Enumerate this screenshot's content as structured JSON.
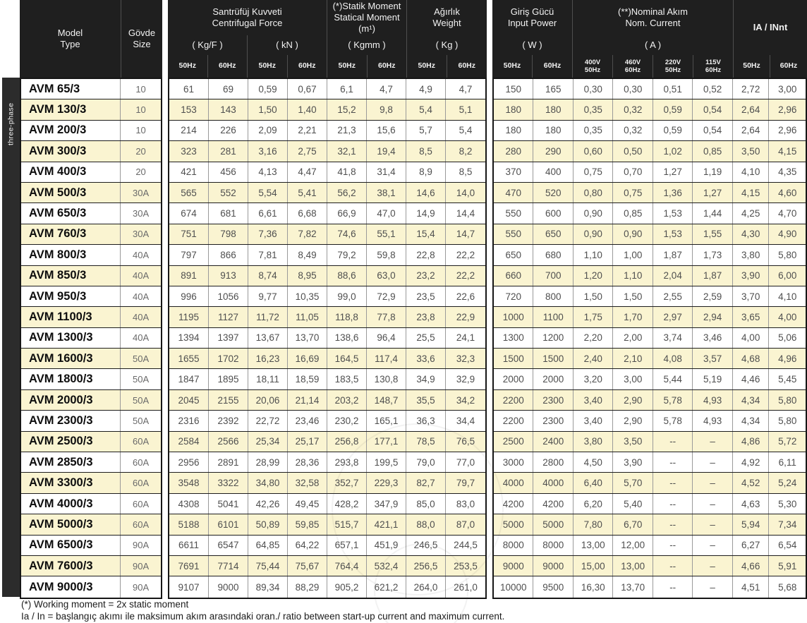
{
  "table": {
    "group_label": "three-phase",
    "header": {
      "model_tr": "Model",
      "model_en": "Type",
      "size_tr": "Gövde",
      "size_en": "Size",
      "centrifugal_tr": "Santrüfüj Kuvveti",
      "centrifugal_en": "Centrifugal Force",
      "unit_kgf": "( Kg/F )",
      "unit_kn": "( kN )",
      "static_tr": "(*)Statik Moment",
      "static_en": "Statical Moment (m¹)",
      "unit_kgmm": "( Kgmm )",
      "weight_tr": "Ağırlık",
      "weight_en": "Weight",
      "unit_kg": "( Kg )",
      "power_tr": "Giriş Gücü",
      "power_en": "Input Power",
      "unit_w": "( W )",
      "current_tr": "(**)Nominal Akım",
      "current_en": "Nom. Current",
      "unit_a": "( A )",
      "ia_label": "IA / INnt",
      "hz50": "50Hz",
      "hz60": "60Hz",
      "volt_subs": [
        [
          "400V",
          "50Hz"
        ],
        [
          "460V",
          "60Hz"
        ],
        [
          "220V",
          "50Hz"
        ],
        [
          "115V",
          "60Hz"
        ]
      ]
    },
    "rows": [
      {
        "model": "AVM 65/3",
        "size": "10",
        "values": [
          "61",
          "69",
          "0,59",
          "0,67",
          "6,1",
          "4,7",
          "4,9",
          "4,7",
          "150",
          "165",
          "0,30",
          "0,30",
          "0,51",
          "0,52",
          "2,72",
          "3,00"
        ]
      },
      {
        "model": "AVM 130/3",
        "size": "10",
        "values": [
          "153",
          "143",
          "1,50",
          "1,40",
          "15,2",
          "9,8",
          "5,4",
          "5,1",
          "180",
          "180",
          "0,35",
          "0,32",
          "0,59",
          "0,54",
          "2,64",
          "2,96"
        ]
      },
      {
        "model": "AVM 200/3",
        "size": "10",
        "values": [
          "214",
          "226",
          "2,09",
          "2,21",
          "21,3",
          "15,6",
          "5,7",
          "5,4",
          "180",
          "180",
          "0,35",
          "0,32",
          "0,59",
          "0,54",
          "2,64",
          "2,96"
        ]
      },
      {
        "model": "AVM 300/3",
        "size": "20",
        "values": [
          "323",
          "281",
          "3,16",
          "2,75",
          "32,1",
          "19,4",
          "8,5",
          "8,2",
          "280",
          "290",
          "0,60",
          "0,50",
          "1,02",
          "0,85",
          "3,50",
          "4,15"
        ]
      },
      {
        "model": "AVM 400/3",
        "size": "20",
        "values": [
          "421",
          "456",
          "4,13",
          "4,47",
          "41,8",
          "31,4",
          "8,9",
          "8,5",
          "370",
          "400",
          "0,75",
          "0,70",
          "1,27",
          "1,19",
          "4,10",
          "4,35"
        ]
      },
      {
        "model": "AVM 500/3",
        "size": "30A",
        "values": [
          "565",
          "552",
          "5,54",
          "5,41",
          "56,2",
          "38,1",
          "14,6",
          "14,0",
          "470",
          "520",
          "0,80",
          "0,75",
          "1,36",
          "1,27",
          "4,15",
          "4,60"
        ]
      },
      {
        "model": "AVM 650/3",
        "size": "30A",
        "values": [
          "674",
          "681",
          "6,61",
          "6,68",
          "66,9",
          "47,0",
          "14,9",
          "14,4",
          "550",
          "600",
          "0,90",
          "0,85",
          "1,53",
          "1,44",
          "4,25",
          "4,70"
        ]
      },
      {
        "model": "AVM 760/3",
        "size": "30A",
        "values": [
          "751",
          "798",
          "7,36",
          "7,82",
          "74,6",
          "55,1",
          "15,4",
          "14,7",
          "550",
          "650",
          "0,90",
          "0,90",
          "1,53",
          "1,55",
          "4,30",
          "4,90"
        ]
      },
      {
        "model": "AVM 800/3",
        "size": "40A",
        "values": [
          "797",
          "866",
          "7,81",
          "8,49",
          "79,2",
          "59,8",
          "22,8",
          "22,2",
          "650",
          "680",
          "1,10",
          "1,00",
          "1,87",
          "1,73",
          "3,80",
          "5,80"
        ]
      },
      {
        "model": "AVM 850/3",
        "size": "40A",
        "values": [
          "891",
          "913",
          "8,74",
          "8,95",
          "88,6",
          "63,0",
          "23,2",
          "22,2",
          "660",
          "700",
          "1,20",
          "1,10",
          "2,04",
          "1,87",
          "3,90",
          "6,00"
        ]
      },
      {
        "model": "AVM 950/3",
        "size": "40A",
        "values": [
          "996",
          "1056",
          "9,77",
          "10,35",
          "99,0",
          "72,9",
          "23,5",
          "22,6",
          "720",
          "800",
          "1,50",
          "1,50",
          "2,55",
          "2,59",
          "3,70",
          "4,10"
        ]
      },
      {
        "model": "AVM 1100/3",
        "size": "40A",
        "values": [
          "1195",
          "1127",
          "11,72",
          "11,05",
          "118,8",
          "77,8",
          "23,8",
          "22,9",
          "1000",
          "1100",
          "1,75",
          "1,70",
          "2,97",
          "2,94",
          "3,65",
          "4,00"
        ]
      },
      {
        "model": "AVM 1300/3",
        "size": "40A",
        "values": [
          "1394",
          "1397",
          "13,67",
          "13,70",
          "138,6",
          "96,4",
          "25,5",
          "24,1",
          "1300",
          "1200",
          "2,20",
          "2,00",
          "3,74",
          "3,46",
          "4,00",
          "5,06"
        ]
      },
      {
        "model": "AVM 1600/3",
        "size": "50A",
        "values": [
          "1655",
          "1702",
          "16,23",
          "16,69",
          "164,5",
          "117,4",
          "33,6",
          "32,3",
          "1500",
          "1500",
          "2,40",
          "2,10",
          "4,08",
          "3,57",
          "4,68",
          "4,96"
        ]
      },
      {
        "model": "AVM 1800/3",
        "size": "50A",
        "values": [
          "1847",
          "1895",
          "18,11",
          "18,59",
          "183,5",
          "130,8",
          "34,9",
          "32,9",
          "2000",
          "2000",
          "3,20",
          "3,00",
          "5,44",
          "5,19",
          "4,46",
          "5,45"
        ]
      },
      {
        "model": "AVM 2000/3",
        "size": "50A",
        "values": [
          "2045",
          "2155",
          "20,06",
          "21,14",
          "203,2",
          "148,7",
          "35,5",
          "34,2",
          "2200",
          "2300",
          "3,40",
          "2,90",
          "5,78",
          "4,93",
          "4,34",
          "5,80"
        ]
      },
      {
        "model": "AVM 2300/3",
        "size": "50A",
        "values": [
          "2316",
          "2392",
          "22,72",
          "23,46",
          "230,2",
          "165,1",
          "36,3",
          "34,4",
          "2200",
          "2300",
          "3,40",
          "2,90",
          "5,78",
          "4,93",
          "4,34",
          "5,80"
        ]
      },
      {
        "model": "AVM 2500/3",
        "size": "60A",
        "values": [
          "2584",
          "2566",
          "25,34",
          "25,17",
          "256,8",
          "177,1",
          "78,5",
          "76,5",
          "2500",
          "2400",
          "3,80",
          "3,50",
          "--",
          "–",
          "4,86",
          "5,72"
        ]
      },
      {
        "model": "AVM 2850/3",
        "size": "60A",
        "values": [
          "2956",
          "2891",
          "28,99",
          "28,36",
          "293,8",
          "199,5",
          "79,0",
          "77,0",
          "3000",
          "2800",
          "4,50",
          "3,90",
          "--",
          "–",
          "4,92",
          "6,11"
        ]
      },
      {
        "model": "AVM 3300/3",
        "size": "60A",
        "values": [
          "3548",
          "3322",
          "34,80",
          "32,58",
          "352,7",
          "229,3",
          "82,7",
          "79,7",
          "4000",
          "4000",
          "6,40",
          "5,70",
          "--",
          "–",
          "4,52",
          "5,24"
        ]
      },
      {
        "model": "AVM 4000/3",
        "size": "60A",
        "values": [
          "4308",
          "5041",
          "42,26",
          "49,45",
          "428,2",
          "347,9",
          "85,0",
          "83,0",
          "4200",
          "4200",
          "6,20",
          "5,40",
          "--",
          "–",
          "4,63",
          "5,30"
        ]
      },
      {
        "model": "AVM 5000/3",
        "size": "60A",
        "values": [
          "5188",
          "6101",
          "50,89",
          "59,85",
          "515,7",
          "421,1",
          "88,0",
          "87,0",
          "5000",
          "5000",
          "7,80",
          "6,70",
          "--",
          "–",
          "5,94",
          "7,34"
        ]
      },
      {
        "model": "AVM 6500/3",
        "size": "90A",
        "values": [
          "6611",
          "6547",
          "64,85",
          "64,22",
          "657,1",
          "451,9",
          "246,5",
          "244,5",
          "8000",
          "8000",
          "13,00",
          "12,00",
          "--",
          "–",
          "6,27",
          "6,54"
        ]
      },
      {
        "model": "AVM 7600/3",
        "size": "90A",
        "values": [
          "7691",
          "7714",
          "75,44",
          "75,67",
          "764,4",
          "532,4",
          "256,5",
          "253,5",
          "9000",
          "9000",
          "15,00",
          "13,00",
          "--",
          "–",
          "4,66",
          "5,91"
        ]
      },
      {
        "model": "AVM 9000/3",
        "size": "90A",
        "values": [
          "9107",
          "9000",
          "89,34",
          "88,29",
          "905,2",
          "621,2",
          "264,0",
          "261,0",
          "10000",
          "9500",
          "16,30",
          "13,70",
          "--",
          "–",
          "4,51",
          "5,68"
        ]
      }
    ],
    "footnotes": [
      "(*) Working moment = 2x static moment",
      "Ia / In = başlangıç akımı ile maksimum akım arasındaki oran./ ratio between start-up current and maximum current."
    ]
  },
  "colors": {
    "header_bg": "#1f1f1f",
    "stripe": "#faf4d1",
    "border_dark": "#161616",
    "body_text": "#4f4f4f"
  }
}
